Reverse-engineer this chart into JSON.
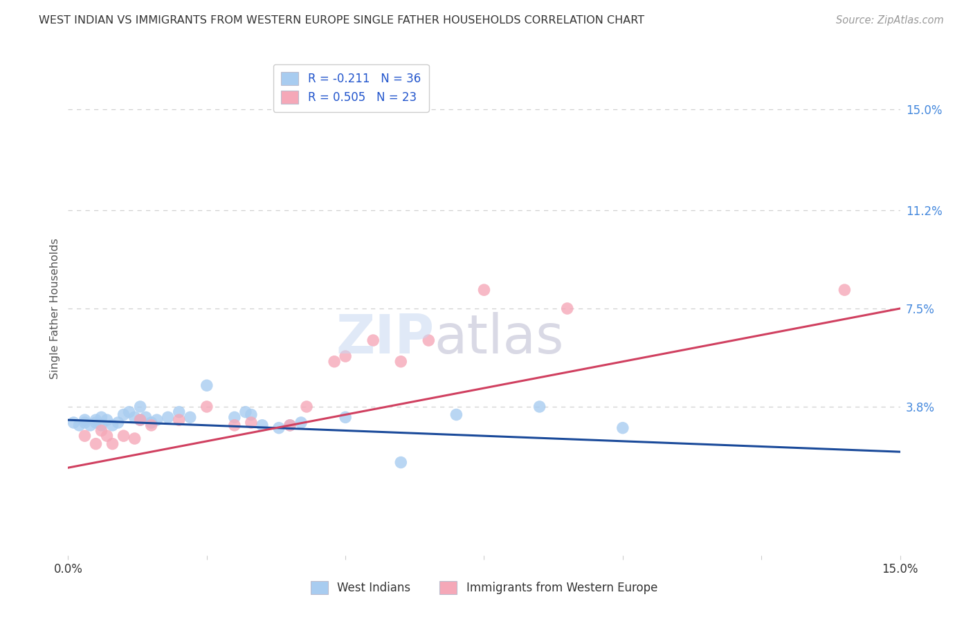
{
  "title": "WEST INDIAN VS IMMIGRANTS FROM WESTERN EUROPE SINGLE FATHER HOUSEHOLDS CORRELATION CHART",
  "source": "Source: ZipAtlas.com",
  "ylabel": "Single Father Households",
  "background_color": "#ffffff",
  "grid_color": "#d0d0d0",
  "color_blue": "#A8CCF0",
  "color_pink": "#F5A8B8",
  "color_line_blue": "#1A4A9A",
  "color_line_pink": "#D04060",
  "ytick_values": [
    0.038,
    0.075,
    0.112,
    0.15
  ],
  "ytick_labels": [
    "3.8%",
    "7.5%",
    "11.2%",
    "15.0%"
  ],
  "xlim": [
    0.0,
    0.15
  ],
  "ylim": [
    -0.018,
    0.168
  ],
  "legend_label1": "R = -0.211   N = 36",
  "legend_label2": "R = 0.505   N = 23",
  "bottom_legend1": "West Indians",
  "bottom_legend2": "Immigrants from Western Europe",
  "blue_line_x": [
    0.0,
    0.15
  ],
  "blue_line_y": [
    0.033,
    0.021
  ],
  "pink_line_x": [
    0.0,
    0.15
  ],
  "pink_line_y": [
    0.015,
    0.075
  ],
  "blue_points": [
    [
      0.001,
      0.032
    ],
    [
      0.002,
      0.031
    ],
    [
      0.003,
      0.032
    ],
    [
      0.003,
      0.033
    ],
    [
      0.004,
      0.031
    ],
    [
      0.005,
      0.033
    ],
    [
      0.005,
      0.032
    ],
    [
      0.006,
      0.034
    ],
    [
      0.006,
      0.031
    ],
    [
      0.007,
      0.033
    ],
    [
      0.008,
      0.031
    ],
    [
      0.009,
      0.032
    ],
    [
      0.01,
      0.035
    ],
    [
      0.011,
      0.036
    ],
    [
      0.012,
      0.034
    ],
    [
      0.013,
      0.033
    ],
    [
      0.013,
      0.038
    ],
    [
      0.014,
      0.034
    ],
    [
      0.015,
      0.032
    ],
    [
      0.016,
      0.033
    ],
    [
      0.018,
      0.034
    ],
    [
      0.02,
      0.036
    ],
    [
      0.022,
      0.034
    ],
    [
      0.025,
      0.046
    ],
    [
      0.03,
      0.034
    ],
    [
      0.032,
      0.036
    ],
    [
      0.033,
      0.035
    ],
    [
      0.035,
      0.031
    ],
    [
      0.038,
      0.03
    ],
    [
      0.04,
      0.031
    ],
    [
      0.042,
      0.032
    ],
    [
      0.05,
      0.034
    ],
    [
      0.06,
      0.017
    ],
    [
      0.07,
      0.035
    ],
    [
      0.085,
      0.038
    ],
    [
      0.1,
      0.03
    ]
  ],
  "pink_points": [
    [
      0.003,
      0.027
    ],
    [
      0.005,
      0.024
    ],
    [
      0.006,
      0.029
    ],
    [
      0.007,
      0.027
    ],
    [
      0.008,
      0.024
    ],
    [
      0.01,
      0.027
    ],
    [
      0.012,
      0.026
    ],
    [
      0.013,
      0.033
    ],
    [
      0.015,
      0.031
    ],
    [
      0.02,
      0.033
    ],
    [
      0.025,
      0.038
    ],
    [
      0.03,
      0.031
    ],
    [
      0.033,
      0.032
    ],
    [
      0.04,
      0.031
    ],
    [
      0.043,
      0.038
    ],
    [
      0.048,
      0.055
    ],
    [
      0.05,
      0.057
    ],
    [
      0.055,
      0.063
    ],
    [
      0.06,
      0.055
    ],
    [
      0.065,
      0.063
    ],
    [
      0.075,
      0.082
    ],
    [
      0.09,
      0.075
    ],
    [
      0.14,
      0.082
    ]
  ]
}
